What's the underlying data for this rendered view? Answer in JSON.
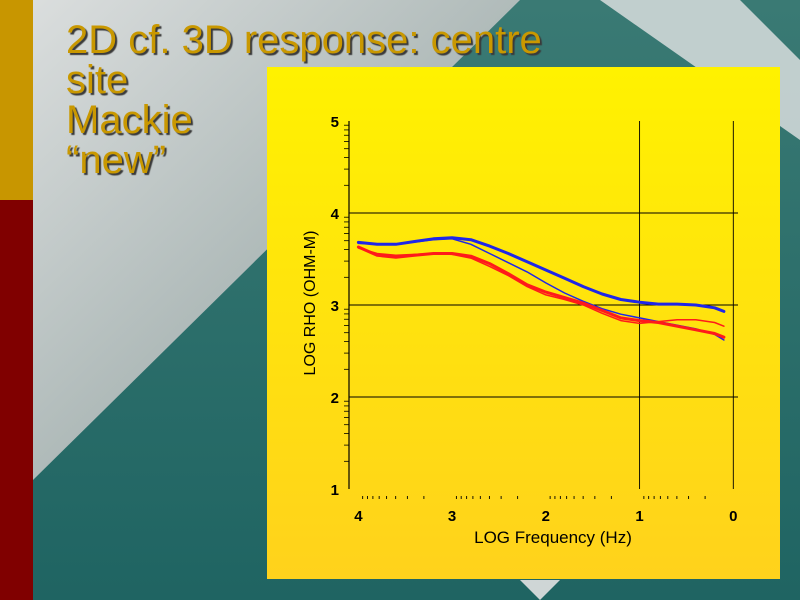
{
  "title_lines": [
    "2D cf. 3D response: centre",
    "site",
    "Mackie",
    "“new”"
  ],
  "colors": {
    "panel": "#ffe600",
    "stripe_top": "#c89600",
    "stripe_bottom": "#800000",
    "title": "#c99800",
    "series_blue": "#1f26e8",
    "series_red": "#ff1a1a"
  },
  "chart_data": {
    "type": "line",
    "xlabel": "LOG Frequency (Hz)",
    "ylabel": "LOG RHO (OHM-M)",
    "xlim": [
      4.1,
      -0.05
    ],
    "ylim": [
      1,
      5
    ],
    "x_ticks": [
      4,
      3,
      2,
      1,
      0
    ],
    "y_ticks": [
      1,
      2,
      3,
      4,
      5
    ],
    "x_tick_labels": [
      "4",
      "3",
      "2",
      "1",
      "0"
    ],
    "y_tick_labels": [
      "1",
      "2",
      "3",
      "4",
      "5"
    ],
    "grid": true,
    "series": [
      {
        "color": "#1f26e8",
        "width": 3,
        "x": [
          4.0,
          3.8,
          3.6,
          3.4,
          3.2,
          3.0,
          2.8,
          2.6,
          2.4,
          2.2,
          2.0,
          1.8,
          1.6,
          1.4,
          1.2,
          1.0,
          0.8,
          0.6,
          0.4,
          0.2,
          0.1
        ],
        "y": [
          3.68,
          3.66,
          3.66,
          3.69,
          3.72,
          3.73,
          3.71,
          3.64,
          3.56,
          3.47,
          3.38,
          3.29,
          3.2,
          3.12,
          3.06,
          3.03,
          3.01,
          3.01,
          3.0,
          2.97,
          2.93
        ]
      },
      {
        "color": "#1f26e8",
        "width": 1.5,
        "x": [
          4.0,
          3.6,
          3.2,
          3.0,
          2.8,
          2.6,
          2.4,
          2.2,
          2.0,
          1.8,
          1.6,
          1.4,
          1.2,
          1.0,
          0.8,
          0.6,
          0.4,
          0.2,
          0.1
        ],
        "y": [
          3.67,
          3.66,
          3.71,
          3.72,
          3.66,
          3.56,
          3.46,
          3.36,
          3.24,
          3.13,
          3.04,
          2.96,
          2.9,
          2.86,
          2.82,
          2.78,
          2.74,
          2.68,
          2.62
        ]
      },
      {
        "color": "#ff1a1a",
        "width": 3,
        "x": [
          4.0,
          3.8,
          3.6,
          3.4,
          3.2,
          3.0,
          2.8,
          2.6,
          2.4,
          2.2,
          2.0,
          1.8,
          1.6,
          1.4,
          1.2,
          1.0,
          0.8,
          0.6,
          0.4,
          0.2,
          0.1
        ],
        "y": [
          3.63,
          3.54,
          3.52,
          3.54,
          3.56,
          3.56,
          3.53,
          3.45,
          3.34,
          3.22,
          3.14,
          3.08,
          3.02,
          2.94,
          2.86,
          2.83,
          2.81,
          2.77,
          2.73,
          2.69,
          2.65
        ]
      },
      {
        "color": "#ff1a1a",
        "width": 1.5,
        "x": [
          4.0,
          3.8,
          3.6,
          3.4,
          3.2,
          3.0,
          2.8,
          2.6,
          2.4,
          2.2,
          2.0,
          1.8,
          1.6,
          1.4,
          1.2,
          1.0,
          0.8,
          0.6,
          0.4,
          0.2,
          0.1
        ],
        "y": [
          3.62,
          3.56,
          3.54,
          3.55,
          3.56,
          3.55,
          3.51,
          3.42,
          3.32,
          3.2,
          3.11,
          3.06,
          3.0,
          2.91,
          2.83,
          2.8,
          2.82,
          2.84,
          2.84,
          2.81,
          2.77
        ]
      }
    ]
  }
}
